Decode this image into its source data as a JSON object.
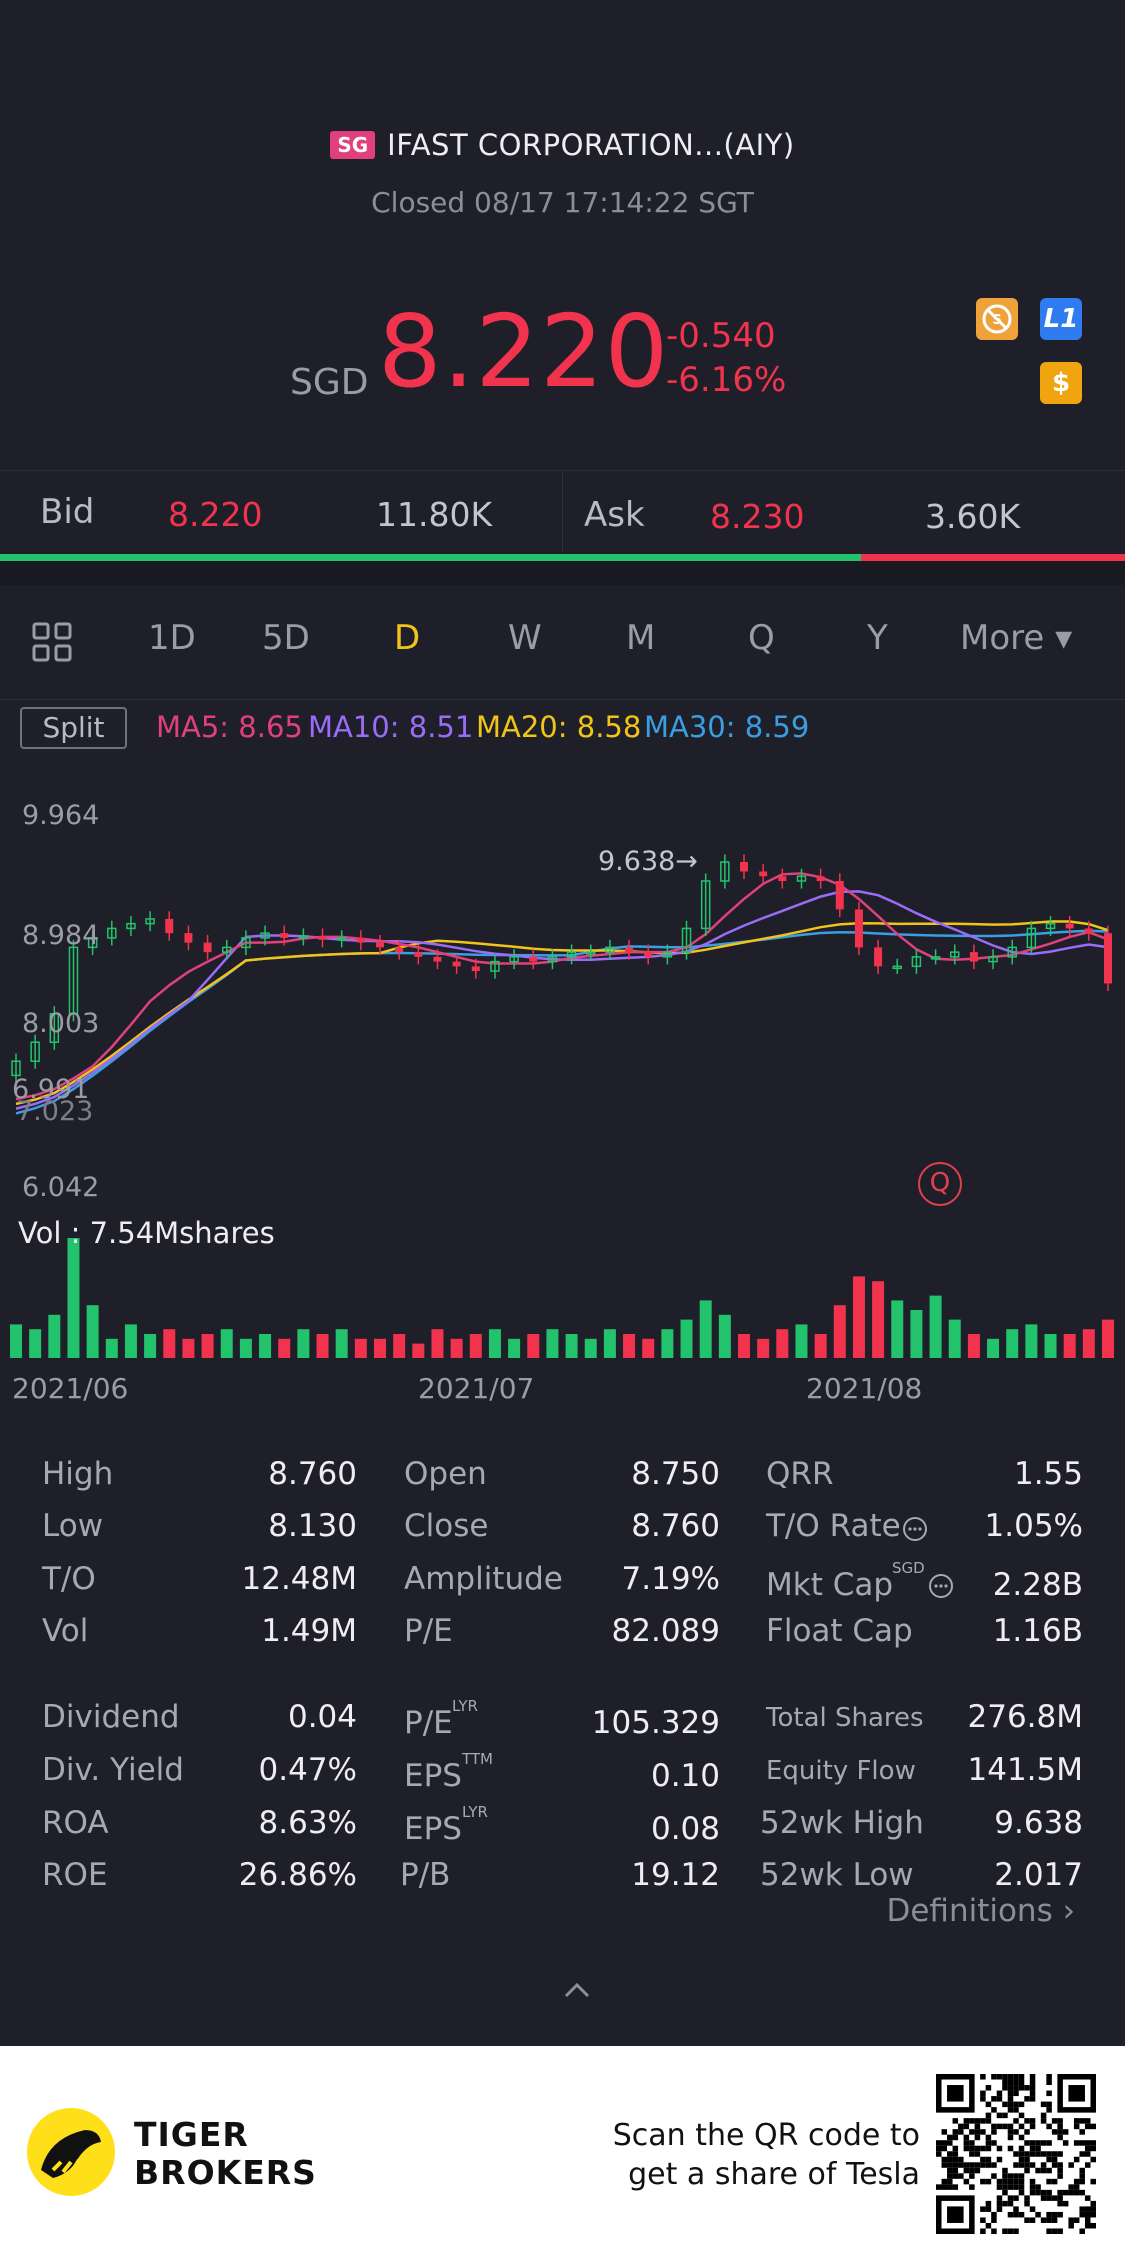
{
  "header": {
    "market_badge": "SG",
    "title": "IFAST CORPORATION...(AIY)",
    "status": "Closed 08/17 17:14:22 SGT"
  },
  "quote": {
    "currency": "SGD",
    "price": "8.220",
    "change": "-0.540",
    "change_pct": "-6.16%",
    "icons": [
      "no-short-icon",
      "level1-icon",
      "dollar-icon"
    ],
    "level_badge": "L1",
    "dollar_badge": "$"
  },
  "bid_ask": {
    "bid_label": "Bid",
    "bid_price": "8.220",
    "bid_size": "11.80K",
    "ask_label": "Ask",
    "ask_price": "8.230",
    "ask_size": "3.60K",
    "bid_ratio": 0.765
  },
  "tabs": {
    "items": [
      "1D",
      "5D",
      "D",
      "W",
      "M",
      "Q",
      "Y"
    ],
    "active": "D",
    "more": "More ▾"
  },
  "indicators": {
    "split": "Split",
    "ma5": "MA5: 8.65",
    "ma10": "MA10: 8.51",
    "ma20": "MA20: 8.58",
    "ma30": "MA30: 8.59"
  },
  "chart_data": {
    "type": "candlestick",
    "price_axis": [
      "9.964",
      "8.984",
      "8.003",
      "6.991",
      "6.042"
    ],
    "overlay_label_1": "7.023",
    "high_marker": "9.638→",
    "volume_label": "Vol  : 7.54Mshares",
    "dates": [
      "2021/06",
      "2021/07",
      "2021/08"
    ],
    "close": [
      7.4,
      7.6,
      7.9,
      8.6,
      8.7,
      8.8,
      8.85,
      8.9,
      8.75,
      8.65,
      8.55,
      8.6,
      8.7,
      8.75,
      8.7,
      8.72,
      8.68,
      8.7,
      8.65,
      8.6,
      8.55,
      8.5,
      8.45,
      8.4,
      8.35,
      8.45,
      8.5,
      8.45,
      8.5,
      8.55,
      8.55,
      8.6,
      8.55,
      8.5,
      8.55,
      8.8,
      9.3,
      9.5,
      9.4,
      9.35,
      9.3,
      9.35,
      9.3,
      9.0,
      8.6,
      8.4,
      8.4,
      8.5,
      8.5,
      8.55,
      8.45,
      8.5,
      8.6,
      8.8,
      8.85,
      8.8,
      8.75,
      8.22
    ],
    "volume": [
      0.35,
      0.3,
      0.45,
      1.25,
      0.55,
      0.2,
      0.35,
      0.25,
      0.3,
      0.2,
      0.25,
      0.3,
      0.2,
      0.25,
      0.2,
      0.3,
      0.25,
      0.3,
      0.2,
      0.2,
      0.25,
      0.15,
      0.3,
      0.2,
      0.25,
      0.3,
      0.2,
      0.25,
      0.3,
      0.25,
      0.2,
      0.3,
      0.25,
      0.2,
      0.3,
      0.4,
      0.6,
      0.45,
      0.25,
      0.2,
      0.3,
      0.35,
      0.25,
      0.55,
      0.85,
      0.8,
      0.6,
      0.5,
      0.65,
      0.4,
      0.25,
      0.2,
      0.3,
      0.35,
      0.25,
      0.25,
      0.3,
      0.4
    ],
    "ylim": [
      6.042,
      9.964
    ]
  },
  "stats": {
    "col1": [
      {
        "label": "High",
        "value": "8.760"
      },
      {
        "label": "Low",
        "value": "8.130"
      },
      {
        "label": "T/O",
        "value": "12.48M"
      },
      {
        "label": "Vol",
        "value": "1.49M"
      },
      {
        "label": "Dividend",
        "value": "0.04"
      },
      {
        "label": "Div. Yield",
        "value": "0.47%"
      },
      {
        "label": "ROA",
        "value": "8.63%"
      },
      {
        "label": "ROE",
        "value": "26.86%"
      }
    ],
    "col2": [
      {
        "label": "Open",
        "value": "8.750"
      },
      {
        "label": "Close",
        "value": "8.760"
      },
      {
        "label": "Amplitude",
        "value": "7.19%"
      },
      {
        "label": "P/E",
        "value": "82.089"
      },
      {
        "label": "P/E",
        "sup": "LYR",
        "value": "105.329"
      },
      {
        "label": "EPS",
        "sup": "TTM",
        "value": "0.10"
      },
      {
        "label": "EPS",
        "sup": "LYR",
        "value": "0.08"
      },
      {
        "label": "P/B",
        "value": "19.12"
      }
    ],
    "col3": [
      {
        "label": "QRR",
        "value": "1.55"
      },
      {
        "label": "T/O Rate",
        "value": "1.05%"
      },
      {
        "label": "Mkt Cap",
        "sup": "SGD",
        "value": "2.28B"
      },
      {
        "label": "Float Cap",
        "value": "1.16B"
      },
      {
        "label": "Total Shares",
        "value": "276.8M"
      },
      {
        "label": "Equity Flow",
        "value": "141.5M"
      },
      {
        "label": "52wk High",
        "value": "9.638"
      },
      {
        "label": "52wk Low",
        "value": "2.017"
      }
    ],
    "definitions": "Definitions"
  },
  "footer": {
    "brand_line1": "TIGER",
    "brand_line2": "BROKERS",
    "promo_line1": "Scan the QR code to",
    "promo_line2": "get a share of Tesla"
  },
  "colors": {
    "red": "#f2334d",
    "green": "#22c36c",
    "ma5": "#e0407c",
    "ma10": "#9b6cf7",
    "ma20": "#f0c419",
    "ma30": "#3a9ee0",
    "active_tab": "#f0c419",
    "background": "#1e1f29"
  }
}
